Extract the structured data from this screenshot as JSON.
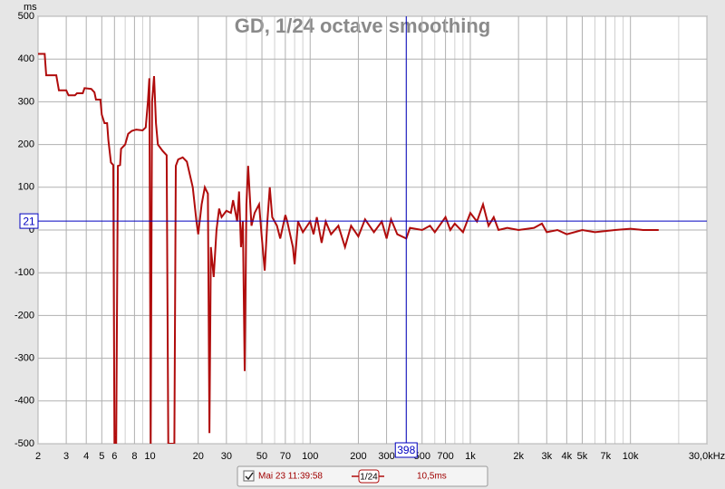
{
  "chart_data": {
    "type": "line",
    "title": "GD, 1/24 octave smoothing",
    "y_unit": "ms",
    "log_x": true,
    "grid": true,
    "xlim": [
      2,
      30000
    ],
    "ylim": [
      -500,
      500
    ],
    "yticks": [
      -500,
      -400,
      -300,
      -200,
      -100,
      0,
      100,
      200,
      300,
      400,
      500
    ],
    "xticks": [
      2,
      3,
      4,
      5,
      6,
      8,
      10,
      20,
      30,
      50,
      70,
      100,
      200,
      300,
      500,
      700,
      {
        "value": 1000,
        "label": "1k"
      },
      {
        "value": 2000,
        "label": "2k"
      },
      {
        "value": 3000,
        "label": "3k"
      },
      {
        "value": 4000,
        "label": "4k"
      },
      {
        "value": 5000,
        "label": "5k"
      },
      {
        "value": 7000,
        "label": "7k"
      },
      {
        "value": 10000,
        "label": "10k"
      },
      {
        "value": 30000,
        "label": "30,0kHz"
      }
    ],
    "xminor": [
      7,
      9,
      40,
      60,
      80,
      90,
      400,
      600,
      800,
      900,
      6000,
      8000,
      9000,
      20000
    ],
    "cursor": {
      "x": 398,
      "y": 21,
      "color": "#0000c0"
    },
    "series": [
      {
        "name": "Mai 23 11:39:58",
        "color": "#b00c0c",
        "smoothing": "1/24",
        "delay": "10,5ms",
        "x": [
          2,
          2.2,
          2.25,
          2.6,
          2.7,
          3.0,
          3.1,
          3.4,
          3.5,
          3.8,
          3.9,
          4.3,
          4.5,
          4.6,
          4.9,
          5.0,
          5.2,
          5.4,
          5.5,
          5.7,
          5.9,
          6.0,
          6.15,
          6.3,
          6.5,
          6.6,
          7.0,
          7.3,
          7.7,
          8.2,
          9.0,
          9.4,
          9.7,
          9.9,
          10.1,
          10.3,
          10.6,
          10.9,
          11.2,
          12,
          12.7,
          13,
          14.2,
          14.5,
          15,
          16,
          17,
          18.5,
          19.5,
          20,
          21,
          22,
          23,
          23.5,
          24,
          25,
          26,
          27,
          28,
          30,
          32,
          33,
          35,
          36,
          37,
          38,
          39,
          40,
          41,
          43,
          45,
          48,
          50,
          52,
          54,
          56,
          58,
          62,
          65,
          70,
          72,
          78,
          80,
          84,
          90,
          100,
          105,
          110,
          118,
          125,
          135,
          150,
          165,
          180,
          200,
          220,
          250,
          280,
          300,
          320,
          350,
          398,
          420,
          500,
          560,
          600,
          700,
          750,
          800,
          900,
          1000,
          1100,
          1200,
          1300,
          1400,
          1500,
          1700,
          2000,
          2500,
          2800,
          3000,
          3500,
          4000,
          5000,
          6000,
          8000,
          10000,
          12000,
          15000
        ],
        "values": [
          412,
          412,
          362,
          362,
          327,
          327,
          315,
          315,
          320,
          320,
          332,
          330,
          322,
          305,
          305,
          270,
          250,
          250,
          210,
          158,
          152,
          -500,
          -500,
          150,
          152,
          190,
          200,
          225,
          232,
          235,
          233,
          240,
          300,
          355,
          -500,
          300,
          360,
          250,
          200,
          185,
          175,
          -500,
          -500,
          150,
          165,
          170,
          160,
          100,
          20,
          -10,
          60,
          100,
          85,
          -475,
          -40,
          -110,
          0,
          50,
          30,
          45,
          40,
          70,
          20,
          90,
          -40,
          20,
          -330,
          60,
          150,
          10,
          40,
          60,
          -20,
          -95,
          20,
          100,
          30,
          10,
          -20,
          35,
          20,
          -40,
          -80,
          20,
          -5,
          20,
          -10,
          30,
          -30,
          20,
          -10,
          10,
          -40,
          10,
          -15,
          25,
          -5,
          20,
          -20,
          25,
          -10,
          -20,
          5,
          0,
          10,
          -5,
          30,
          0,
          15,
          -5,
          40,
          20,
          60,
          10,
          30,
          0,
          5,
          0,
          5,
          15,
          -5,
          0,
          -10,
          0,
          -5,
          0,
          3,
          0,
          0
        ]
      }
    ]
  }
}
